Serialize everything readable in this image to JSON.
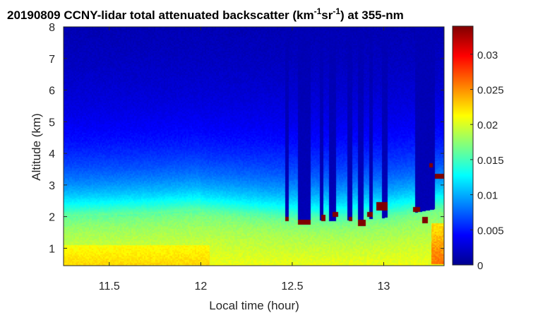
{
  "chart_data": {
    "type": "heatmap",
    "title": {
      "prefix": "20190809 CCNY-lidar total attenuated backscatter (km",
      "sup1": "-1",
      "mid": "sr",
      "sup2": "-1",
      "suffix": ") at 355-nm"
    },
    "xlabel": "Local time (hour)",
    "ylabel": "Altitude (km)",
    "xlim": [
      11.25,
      13.33
    ],
    "ylim": [
      0.45,
      8.0
    ],
    "x_ticks": [
      11.5,
      12,
      12.5,
      13
    ],
    "x_tick_labels": [
      "11.5",
      "12",
      "12.5",
      "13"
    ],
    "y_ticks": [
      1,
      2,
      3,
      4,
      5,
      6,
      7,
      8
    ],
    "y_tick_labels": [
      "1",
      "2",
      "3",
      "4",
      "5",
      "6",
      "7",
      "8"
    ],
    "colorbar": {
      "colormap": "jet",
      "clim": [
        0,
        0.034
      ],
      "ticks": [
        0,
        0.005,
        0.01,
        0.015,
        0.02,
        0.025,
        0.03
      ],
      "tick_labels": [
        "0",
        "0.005",
        "0.01",
        "0.015",
        "0.02",
        "0.025",
        "0.03"
      ]
    },
    "boundary_layer_top_km": [
      {
        "x": 11.25,
        "y": 2.0
      },
      {
        "x": 11.75,
        "y": 2.1
      },
      {
        "x": 12.0,
        "y": 2.2
      },
      {
        "x": 12.5,
        "y": 1.95
      },
      {
        "x": 12.75,
        "y": 1.9
      },
      {
        "x": 13.0,
        "y": 2.0
      },
      {
        "x": 13.3,
        "y": 2.3
      }
    ],
    "signal_dropout_intervals_hour": [
      [
        12.46,
        12.48
      ],
      [
        12.53,
        12.6
      ],
      [
        12.65,
        12.67
      ],
      [
        12.7,
        12.74
      ],
      [
        12.8,
        12.83
      ],
      [
        12.86,
        12.89
      ],
      [
        12.92,
        12.94
      ],
      [
        12.99,
        13.02
      ],
      [
        13.17,
        13.28
      ]
    ],
    "cloud_features": [
      {
        "x": [
          12.46,
          12.48
        ],
        "y": [
          1.85,
          2.0
        ]
      },
      {
        "x": [
          12.53,
          12.6
        ],
        "y": [
          1.75,
          1.9
        ]
      },
      {
        "x": [
          12.66,
          12.68
        ],
        "y": [
          1.85,
          2.05
        ]
      },
      {
        "x": [
          12.72,
          12.75
        ],
        "y": [
          2.0,
          2.15
        ]
      },
      {
        "x": [
          12.81,
          12.83
        ],
        "y": [
          1.85,
          2.0
        ]
      },
      {
        "x": [
          12.86,
          12.9
        ],
        "y": [
          1.7,
          1.9
        ]
      },
      {
        "x": [
          12.91,
          12.94
        ],
        "y": [
          2.0,
          2.15
        ]
      },
      {
        "x": [
          12.96,
          13.02
        ],
        "y": [
          2.2,
          2.45
        ]
      },
      {
        "x": [
          13.16,
          13.2
        ],
        "y": [
          2.15,
          2.3
        ]
      },
      {
        "x": [
          13.21,
          13.24
        ],
        "y": [
          1.8,
          2.0
        ]
      },
      {
        "x": [
          13.25,
          13.27
        ],
        "y": [
          3.55,
          3.7
        ]
      },
      {
        "x": [
          13.28,
          13.33
        ],
        "y": [
          3.2,
          3.35
        ]
      }
    ],
    "near_surface_max_region": {
      "x": [
        13.26,
        13.33
      ],
      "y": [
        0.5,
        1.8
      ],
      "value": 0.026
    }
  }
}
